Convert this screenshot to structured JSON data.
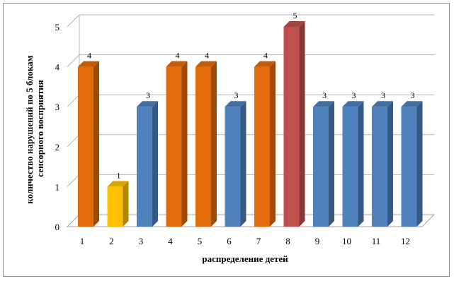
{
  "chart_data": {
    "type": "bar",
    "style": "3d-column",
    "categories": [
      "1",
      "2",
      "3",
      "4",
      "5",
      "6",
      "7",
      "8",
      "9",
      "10",
      "11",
      "12"
    ],
    "values": [
      4,
      1,
      3,
      4,
      4,
      3,
      4,
      5,
      3,
      3,
      3,
      3
    ],
    "bar_colors": [
      "#E36C0A",
      "#FFC000",
      "#4F81BD",
      "#E36C0A",
      "#E36C0A",
      "#4F81BD",
      "#E36C0A",
      "#C0504D",
      "#4F81BD",
      "#4F81BD",
      "#4F81BD",
      "#4F81BD"
    ],
    "data_labels": [
      "4",
      "1",
      "3",
      "4",
      "4",
      "3",
      "4",
      "5",
      "3",
      "3",
      "3",
      "3"
    ],
    "ylim": [
      0,
      5
    ],
    "yticks": [
      "0",
      "1",
      "2",
      "3",
      "4",
      "5"
    ],
    "xlabel": "распределение детей",
    "ylabel_lines": [
      "количество нарушений по 5 блокам",
      "сенсорного восприятия"
    ],
    "grid": true,
    "legend": "none"
  }
}
